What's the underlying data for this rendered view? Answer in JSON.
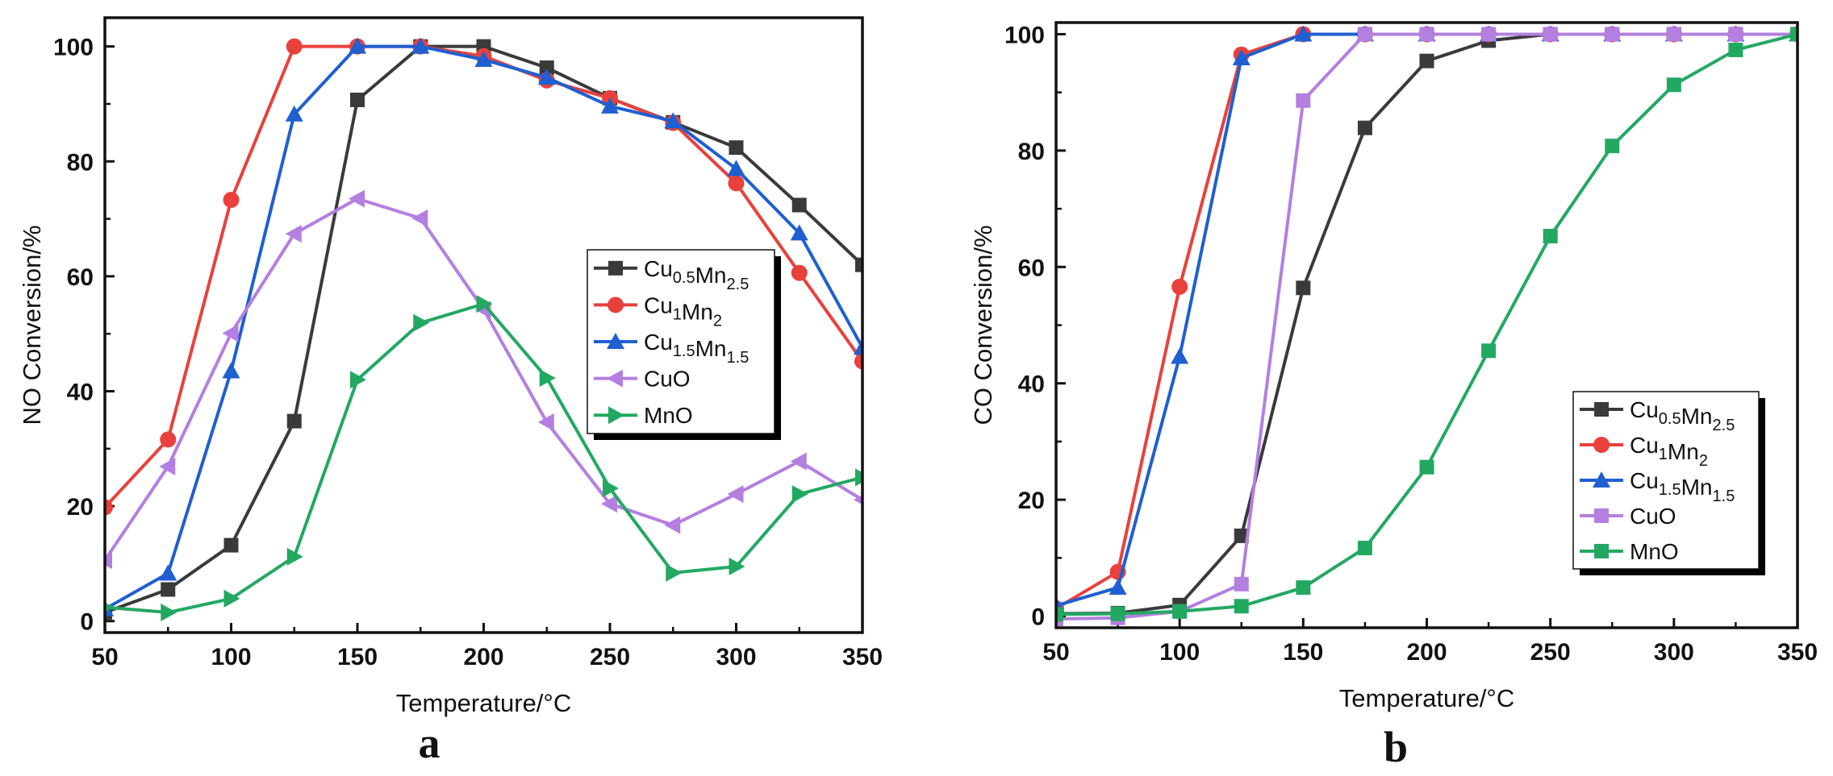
{
  "chart_data": [
    {
      "type": "line",
      "panel_label": "a",
      "xlabel": "Temperature/°C",
      "ylabel": "NO Conversion/%",
      "xlim": [
        50,
        350
      ],
      "ylim": [
        -2,
        105
      ],
      "xticks": [
        50,
        100,
        150,
        200,
        250,
        300,
        350
      ],
      "yticks": [
        0,
        20,
        40,
        60,
        80,
        100
      ],
      "legend_position": "right-middle",
      "x": [
        50,
        75,
        100,
        125,
        150,
        175,
        200,
        225,
        250,
        275,
        300,
        325,
        350
      ],
      "series": [
        {
          "name": "Cu0.5Mn2.5",
          "label_base": [
            "Cu",
            "Mn"
          ],
          "label_sub": [
            "0.5",
            "2.5"
          ],
          "color": "#3a3a3a",
          "marker": "square",
          "values": [
            1.5,
            5.5,
            13.2,
            34.8,
            90.7,
            100,
            100,
            96.3,
            91.0,
            86.8,
            82.4,
            72.4,
            62.0
          ]
        },
        {
          "name": "Cu1Mn2",
          "label_base": [
            "Cu",
            "Mn"
          ],
          "label_sub": [
            "1",
            "2"
          ],
          "color": "#e8413c",
          "marker": "circle",
          "values": [
            19.8,
            31.6,
            73.3,
            100,
            100,
            100,
            98.3,
            94.1,
            91.0,
            86.7,
            76.2,
            60.6,
            45.2
          ]
        },
        {
          "name": "Cu1.5Mn1.5",
          "label_base": [
            "Cu",
            "Mn"
          ],
          "label_sub": [
            "1.5",
            "1.5"
          ],
          "color": "#1f5fd1",
          "marker": "triangle-up",
          "values": [
            2.1,
            8.3,
            43.5,
            88.2,
            100,
            100,
            97.7,
            94.6,
            89.6,
            87.0,
            78.7,
            67.5,
            47.6
          ]
        },
        {
          "name": "CuO",
          "label_base": [
            "CuO"
          ],
          "label_sub": [],
          "color": "#b37fe0",
          "marker": "triangle-left",
          "values": [
            10.6,
            26.9,
            50.1,
            67.4,
            73.5,
            70.1,
            54.2,
            34.6,
            20.4,
            16.7,
            22.1,
            27.8,
            21.1
          ]
        },
        {
          "name": "MnO",
          "label_base": [
            "MnO"
          ],
          "label_sub": [],
          "color": "#23a862",
          "marker": "triangle-right",
          "values": [
            2.4,
            1.5,
            3.9,
            11.2,
            42.0,
            51.9,
            55.2,
            42.3,
            23.1,
            8.4,
            9.5,
            22.1,
            25.0
          ]
        }
      ]
    },
    {
      "type": "line",
      "panel_label": "b",
      "xlabel": "Temperature/°C",
      "ylabel": "CO Conversion/%",
      "xlim": [
        50,
        350
      ],
      "ylim": [
        -2,
        102
      ],
      "xticks": [
        50,
        100,
        150,
        200,
        250,
        300,
        350
      ],
      "yticks": [
        0,
        20,
        40,
        60,
        80,
        100
      ],
      "legend_position": "bottom-right",
      "x": [
        50,
        75,
        100,
        125,
        150,
        175,
        200,
        225,
        250,
        275,
        300,
        325,
        350
      ],
      "series": [
        {
          "name": "Cu0.5Mn2.5",
          "label_base": [
            "Cu",
            "Mn"
          ],
          "label_sub": [
            "0.5",
            "2.5"
          ],
          "color": "#3a3a3a",
          "marker": "square",
          "values": [
            0.4,
            0.5,
            1.9,
            13.8,
            56.4,
            83.9,
            95.4,
            98.9,
            100,
            100,
            100,
            100,
            100
          ]
        },
        {
          "name": "Cu1Mn2",
          "label_base": [
            "Cu",
            "Mn"
          ],
          "label_sub": [
            "1",
            "2"
          ],
          "color": "#e8413c",
          "marker": "circle",
          "values": [
            1.3,
            7.6,
            56.6,
            96.5,
            100,
            100,
            100,
            100,
            100,
            100,
            100,
            100,
            100
          ]
        },
        {
          "name": "Cu1.5Mn1.5",
          "label_base": [
            "Cu",
            "Mn"
          ],
          "label_sub": [
            "1.5",
            "1.5"
          ],
          "color": "#1f5fd1",
          "marker": "triangle-up",
          "values": [
            1.8,
            4.9,
            44.6,
            95.9,
            100,
            100,
            100,
            100,
            100,
            100,
            100,
            100,
            100
          ]
        },
        {
          "name": "CuO",
          "label_base": [
            "CuO"
          ],
          "label_sub": [],
          "color": "#b37fe0",
          "marker": "square",
          "values": [
            -0.5,
            -0.3,
            0.8,
            5.5,
            88.6,
            100,
            100,
            100,
            100,
            100,
            100,
            100,
            100
          ]
        },
        {
          "name": "MnO",
          "label_base": [
            "MnO"
          ],
          "label_sub": [],
          "color": "#23a862",
          "marker": "square",
          "values": [
            0.3,
            0.4,
            0.8,
            1.7,
            4.9,
            11.7,
            25.6,
            45.6,
            65.3,
            80.8,
            91.3,
            97.3,
            100
          ]
        }
      ]
    }
  ]
}
